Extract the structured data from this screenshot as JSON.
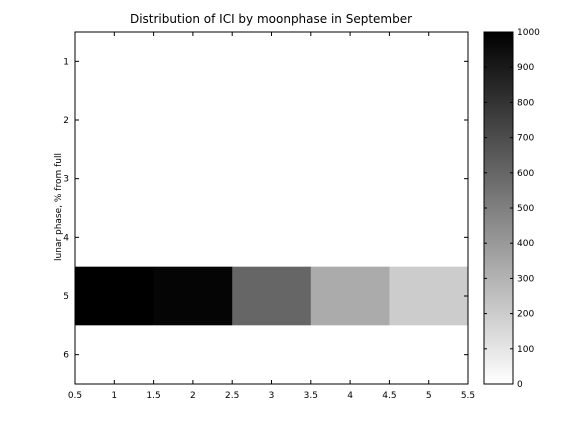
{
  "chart_data": {
    "type": "heatmap",
    "title": "Distribution of ICI by moonphase in September",
    "xlabel": "",
    "ylabel": "lunar phase, % from full",
    "xlim": [
      0.5,
      5.5
    ],
    "ylim": [
      0.5,
      6.5
    ],
    "y_reversed": true,
    "x_ticks": [
      "0.5",
      "1",
      "1.5",
      "2",
      "2.5",
      "3",
      "3.5",
      "4",
      "4.5",
      "5",
      "5.5"
    ],
    "x_tick_values": [
      0.5,
      1,
      1.5,
      2,
      2.5,
      3,
      3.5,
      4,
      4.5,
      5,
      5.5
    ],
    "y_ticks": [
      "1",
      "2",
      "3",
      "4",
      "5",
      "6"
    ],
    "y_tick_values": [
      1,
      2,
      3,
      4,
      5,
      6
    ],
    "x_categories": [
      1,
      2,
      3,
      4,
      5
    ],
    "y_categories": [
      1,
      2,
      3,
      4,
      5,
      6
    ],
    "values": [
      [
        0,
        0,
        0,
        0,
        0
      ],
      [
        0,
        0,
        0,
        0,
        0
      ],
      [
        0,
        0,
        0,
        0,
        0
      ],
      [
        0,
        0,
        0,
        0,
        0
      ],
      [
        1000,
        980,
        600,
        330,
        200
      ],
      [
        0,
        0,
        0,
        0,
        0
      ]
    ],
    "colormap": "inverted gray (0 = white, 1000 = black)",
    "colorbar": {
      "range": [
        0,
        1000
      ],
      "ticks": [
        "0",
        "100",
        "200",
        "300",
        "400",
        "500",
        "600",
        "700",
        "800",
        "900",
        "1000"
      ],
      "tick_values": [
        0,
        100,
        200,
        300,
        400,
        500,
        600,
        700,
        800,
        900,
        1000
      ]
    },
    "grid": false
  }
}
